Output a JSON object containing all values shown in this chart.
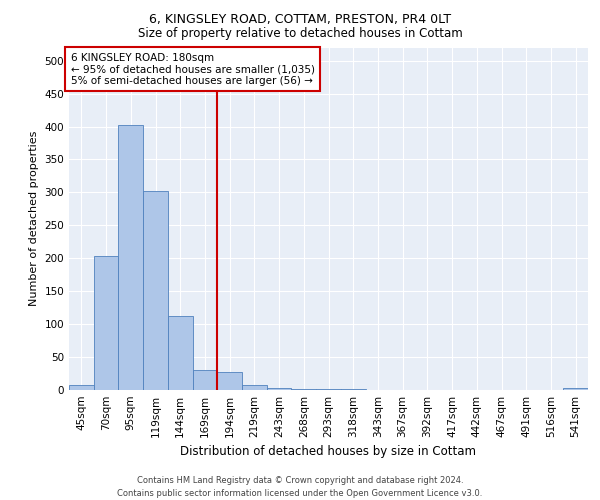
{
  "title1": "6, KINGSLEY ROAD, COTTAM, PRESTON, PR4 0LT",
  "title2": "Size of property relative to detached houses in Cottam",
  "xlabel": "Distribution of detached houses by size in Cottam",
  "ylabel": "Number of detached properties",
  "footer1": "Contains HM Land Registry data © Crown copyright and database right 2024.",
  "footer2": "Contains public sector information licensed under the Open Government Licence v3.0.",
  "bin_labels": [
    "45sqm",
    "70sqm",
    "95sqm",
    "119sqm",
    "144sqm",
    "169sqm",
    "194sqm",
    "219sqm",
    "243sqm",
    "268sqm",
    "293sqm",
    "318sqm",
    "343sqm",
    "367sqm",
    "392sqm",
    "417sqm",
    "442sqm",
    "467sqm",
    "491sqm",
    "516sqm",
    "541sqm"
  ],
  "bar_values": [
    8,
    204,
    402,
    302,
    113,
    30,
    27,
    8,
    3,
    2,
    1,
    1,
    0,
    0,
    0,
    0,
    0,
    0,
    0,
    0,
    3
  ],
  "bar_color": "#aec6e8",
  "bar_edge_color": "#4f81bd",
  "vline_color": "#cc0000",
  "annotation_title": "6 KINGSLEY ROAD: 180sqm",
  "annotation_line1": "← 95% of detached houses are smaller (1,035)",
  "annotation_line2": "5% of semi-detached houses are larger (56) →",
  "annotation_box_color": "#ffffff",
  "annotation_box_edge": "#cc0000",
  "ylim": [
    0,
    520
  ],
  "yticks": [
    0,
    50,
    100,
    150,
    200,
    250,
    300,
    350,
    400,
    450,
    500
  ],
  "bg_color": "#e8eef7",
  "fig_bg": "#ffffff",
  "title1_fontsize": 9,
  "title2_fontsize": 8.5,
  "xlabel_fontsize": 8.5,
  "ylabel_fontsize": 8,
  "tick_fontsize": 7.5,
  "footer_fontsize": 6,
  "annot_fontsize": 7.5
}
